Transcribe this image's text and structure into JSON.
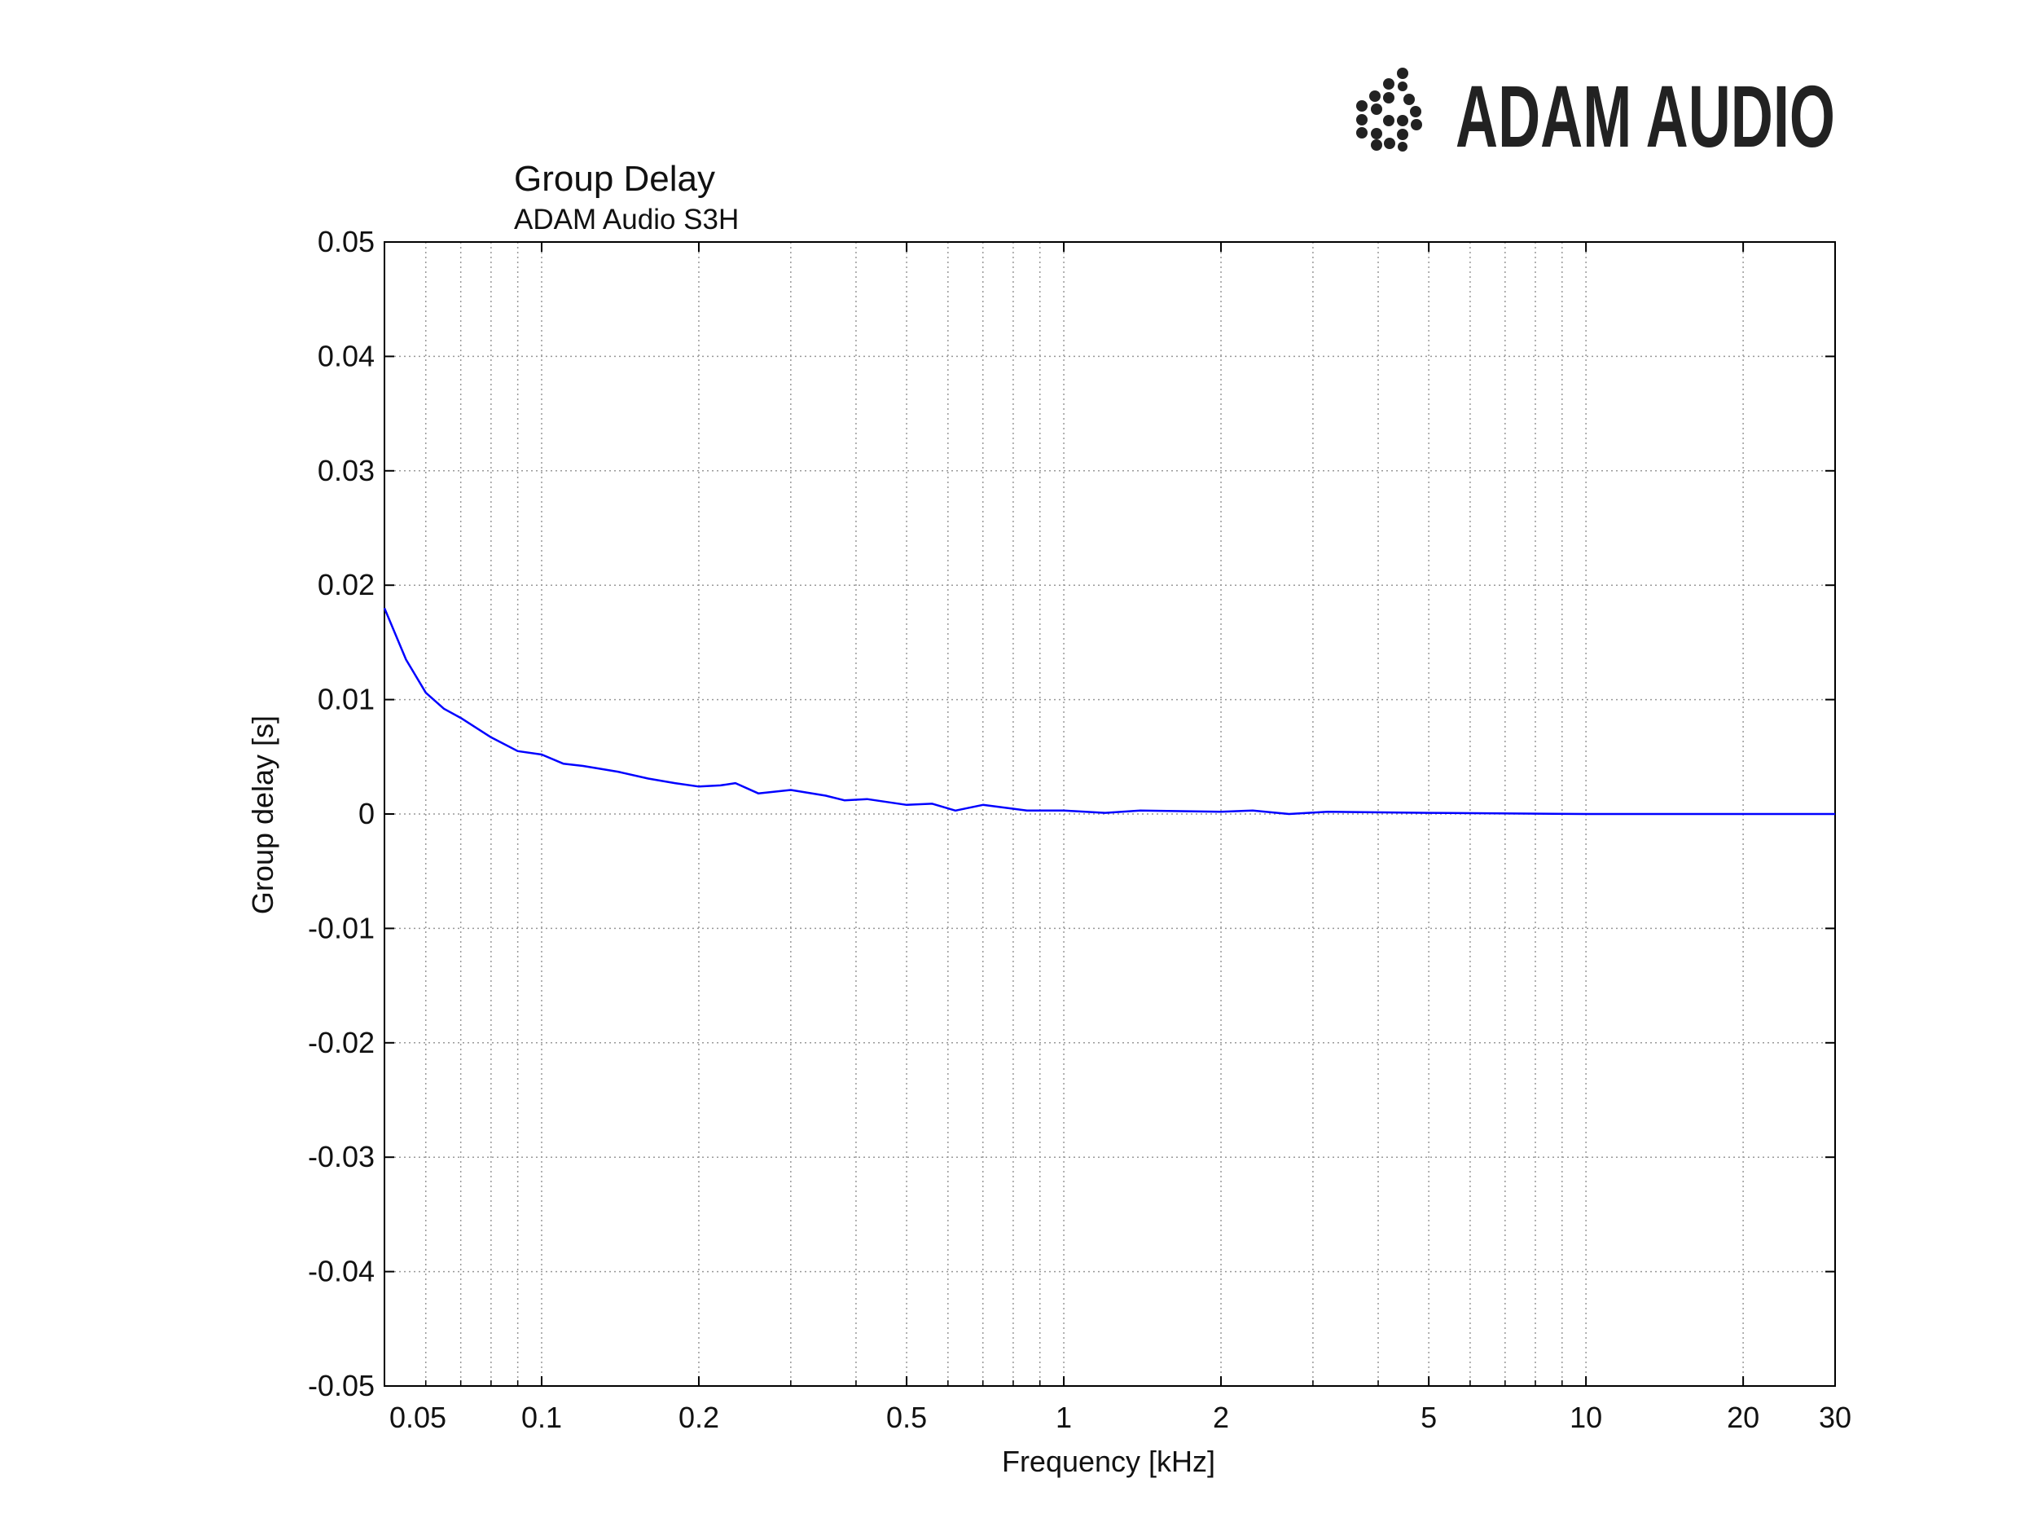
{
  "brand": "ADAM AUDIO",
  "chart_data": {
    "type": "line",
    "title": "Group Delay",
    "subtitle": "ADAM Audio S3H",
    "x_label": "Frequency [kHz]",
    "y_label": "Group delay [s]",
    "x_scale": "log",
    "grid": true,
    "xlim": [
      0.05,
      30
    ],
    "ylim": [
      -0.05,
      0.05
    ],
    "xticks": [
      0.05,
      0.1,
      0.2,
      0.5,
      1,
      2,
      5,
      10,
      20,
      30
    ],
    "xminorticks": [
      0.06,
      0.07,
      0.08,
      0.09,
      0.3,
      0.4,
      0.6,
      0.7,
      0.8,
      0.9,
      3,
      4,
      6,
      7,
      8,
      9
    ],
    "yticks": [
      -0.05,
      -0.04,
      -0.03,
      -0.02,
      -0.01,
      0,
      0.01,
      0.02,
      0.03,
      0.04,
      0.05
    ],
    "x": [
      0.05,
      0.055,
      0.06,
      0.065,
      0.07,
      0.08,
      0.09,
      0.1,
      0.11,
      0.12,
      0.14,
      0.16,
      0.18,
      0.2,
      0.22,
      0.235,
      0.26,
      0.3,
      0.35,
      0.38,
      0.42,
      0.5,
      0.56,
      0.62,
      0.7,
      0.85,
      1,
      1.2,
      1.4,
      2,
      2.3,
      2.7,
      3.2,
      5,
      10,
      30
    ],
    "series": [
      {
        "name": "S3H",
        "color": "#0000ff",
        "values": [
          0.018,
          0.0135,
          0.0106,
          0.0092,
          0.0084,
          0.0067,
          0.0055,
          0.0052,
          0.0044,
          0.0042,
          0.0037,
          0.0031,
          0.0027,
          0.0024,
          0.0025,
          0.0027,
          0.0018,
          0.0021,
          0.0016,
          0.0012,
          0.0013,
          0.0008,
          0.0009,
          0.0003,
          0.0008,
          0.0003,
          0.0003,
          0.0001,
          0.0003,
          0.0002,
          0.0003,
          0,
          0.0002,
          0.0001,
          0,
          0
        ]
      }
    ]
  }
}
